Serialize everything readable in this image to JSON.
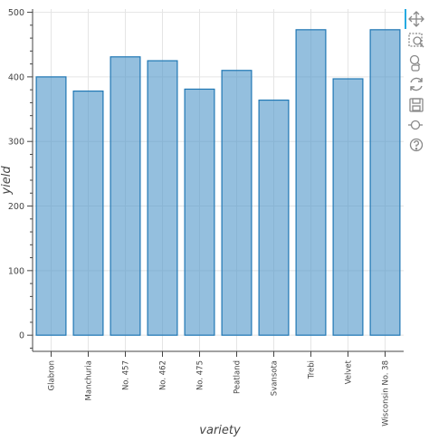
{
  "chart_data": {
    "type": "bar",
    "title": "",
    "xlabel": "variety",
    "ylabel": "yield",
    "categories": [
      "Glabron",
      "Manchuria",
      "No. 457",
      "No. 462",
      "No. 475",
      "Peatland",
      "Svansota",
      "Trebi",
      "Velvet",
      "Wisconsin No. 38"
    ],
    "values": [
      400,
      378,
      431,
      425,
      381,
      410,
      364,
      473,
      397,
      473
    ],
    "ylim": [
      -25,
      505
    ],
    "yticks": [
      0,
      100,
      200,
      300,
      400,
      500
    ],
    "grid": true,
    "legend": "none",
    "bar_color": "#4c94c8",
    "bar_fill_opacity": 0.6,
    "bar_stroke": "#1f77b4"
  },
  "toolbar": {
    "tools": [
      "pan-icon",
      "box-zoom-icon",
      "wheel-zoom-icon",
      "reset-icon",
      "save-icon",
      "hover-icon",
      "help-icon"
    ]
  }
}
